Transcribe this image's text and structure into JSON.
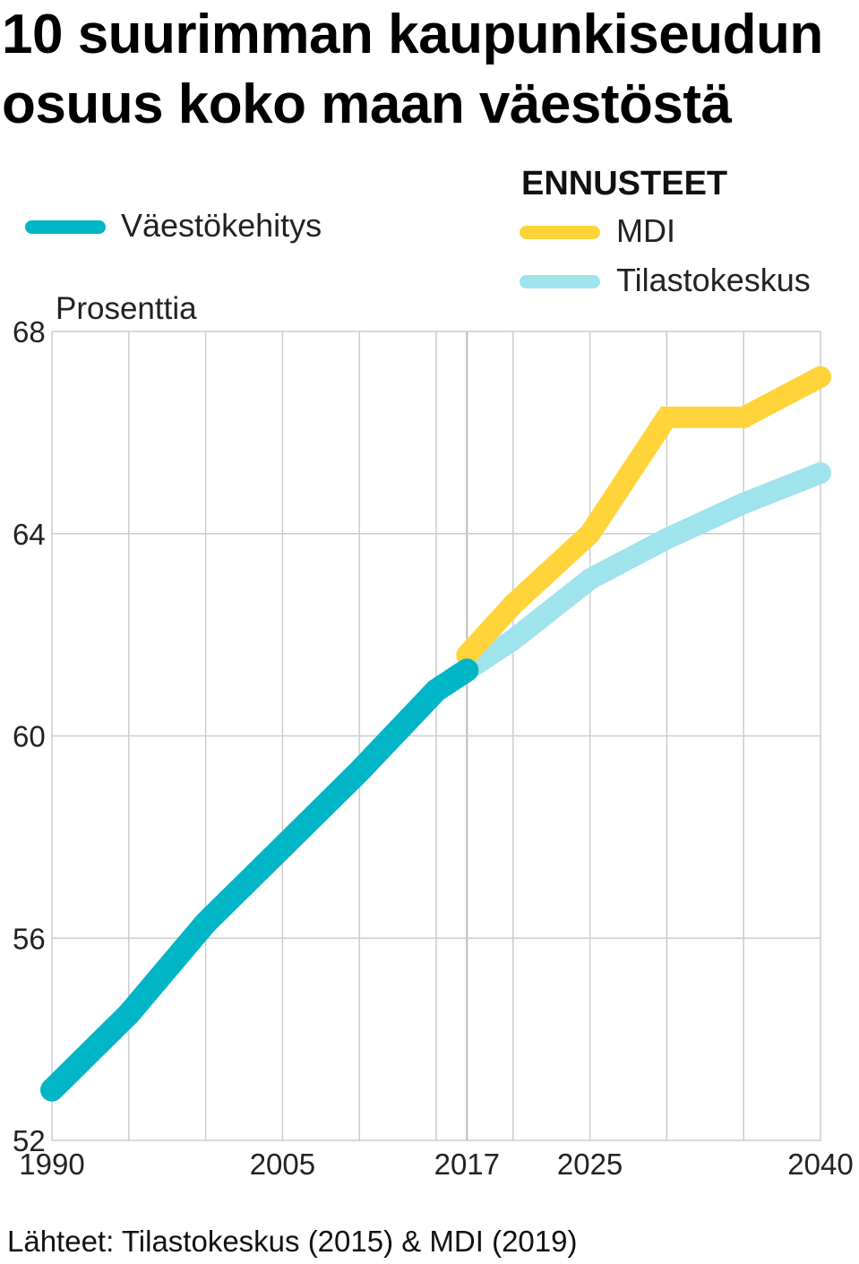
{
  "title_lines": [
    "10 suurimman kaupunkiseudun",
    "osuus koko maan väestöstä"
  ],
  "legend": {
    "history_label": "Väestökehitys",
    "forecast_header": "ENNUSTEET",
    "mdi_label": "MDI",
    "tk_label": "Tilastokeskus"
  },
  "source": "Lähteet: Tilastokeskus (2015) & MDI (2019)",
  "colors": {
    "history": "#00b5c6",
    "mdi": "#ffd43b",
    "tilastokeskus": "#9fe3ec",
    "grid": "#cccccc"
  },
  "chart_data": {
    "type": "line",
    "title": "10 suurimman kaupunkiseudun osuus koko maan väestöstä",
    "ylabel": "Prosenttia",
    "xlabel": "",
    "xlim": [
      1990,
      2040
    ],
    "ylim": [
      52,
      68
    ],
    "y_ticks": [
      52,
      56,
      60,
      64,
      68
    ],
    "x_ticks": [
      1990,
      2005,
      2017,
      2025,
      2040
    ],
    "x_tick_labels": [
      "1990",
      "2005",
      "2017",
      "2025",
      "2040"
    ],
    "grid": true,
    "series": [
      {
        "name": "Väestökehitys",
        "key": "history",
        "x": [
          1990,
          1995,
          2000,
          2005,
          2010,
          2015,
          2017
        ],
        "y": [
          53.0,
          54.5,
          56.3,
          57.8,
          59.3,
          60.9,
          61.3
        ]
      },
      {
        "name": "MDI",
        "key": "mdi",
        "x": [
          2017,
          2020,
          2025,
          2030,
          2035,
          2040
        ],
        "y": [
          61.6,
          62.6,
          64.0,
          66.3,
          66.3,
          67.1
        ]
      },
      {
        "name": "Tilastokeskus",
        "key": "tilastokeskus",
        "x": [
          2017,
          2020,
          2025,
          2030,
          2035,
          2040
        ],
        "y": [
          61.3,
          61.9,
          63.1,
          63.9,
          64.6,
          65.2
        ]
      }
    ]
  }
}
